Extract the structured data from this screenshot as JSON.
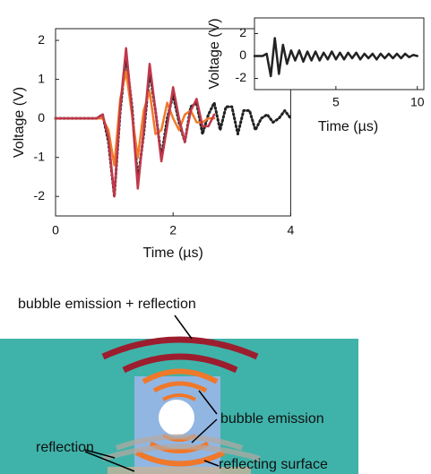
{
  "chart_data": [
    {
      "type": "line",
      "xlabel": "Time (µs)",
      "ylabel": "Voltage (V)",
      "x": [
        0,
        0.5,
        0.7,
        0.8,
        0.9,
        1.0,
        1.1,
        1.2,
        1.3,
        1.4,
        1.5,
        1.6,
        1.7,
        1.8,
        1.9,
        2.0,
        2.1,
        2.2,
        2.3,
        2.4,
        2.5,
        2.6,
        2.7,
        2.8,
        2.9,
        3.0,
        3.1,
        3.2,
        3.3,
        3.4,
        3.5,
        3.6,
        3.7,
        3.8,
        3.9,
        4.0
      ],
      "series": [
        {
          "color": "#c0384a",
          "style": "solid",
          "values": [
            0,
            0,
            0,
            0.1,
            -0.5,
            -2.0,
            0.3,
            1.8,
            0.2,
            -1.8,
            -0.3,
            1.4,
            0.2,
            -1.1,
            -0.2,
            0.8,
            0,
            -0.6,
            0.2,
            0.5,
            -0.2,
            -0.2,
            0.1,
            null,
            null,
            null,
            null,
            null,
            null,
            null,
            null,
            null,
            null,
            null,
            null,
            null
          ]
        },
        {
          "color": "#f07a2a",
          "style": "solid",
          "values": [
            0,
            0,
            0,
            0,
            -0.3,
            -1.2,
            0.5,
            1.2,
            0.1,
            -1.0,
            0.2,
            0.7,
            -0.4,
            -0.3,
            0.4,
            0,
            -0.3,
            0.1,
            0.2,
            -0.1,
            -0.1,
            0,
            0,
            null,
            null,
            null,
            null,
            null,
            null,
            null,
            null,
            null,
            null,
            null,
            null,
            null
          ]
        },
        {
          "color": "#222222",
          "style": "dotted",
          "values": [
            0,
            0,
            0,
            0.1,
            -0.6,
            -2.0,
            0.2,
            1.6,
            0.3,
            -1.6,
            -0.4,
            1.2,
            0.2,
            -1.0,
            0,
            0.6,
            -0.1,
            -0.6,
            0.3,
            0.4,
            -0.4,
            0.1,
            0.4,
            -0.3,
            0.3,
            0.3,
            -0.4,
            0.2,
            0.2,
            -0.3,
            0,
            0.1,
            -0.1,
            0,
            0.2,
            0
          ]
        }
      ],
      "xlim": [
        0,
        4
      ],
      "ylim": [
        -2.5,
        2.3
      ],
      "xticks": [
        0,
        2,
        4
      ],
      "yticks": [
        -2,
        -1,
        0,
        1,
        2
      ]
    },
    {
      "type": "line",
      "xlabel": "Time (µs)",
      "ylabel": "Voltage (V)",
      "x": [
        0,
        0.25,
        0.5,
        0.75,
        1,
        1.25,
        1.5,
        1.75,
        2,
        2.25,
        2.5,
        2.75,
        3,
        3.25,
        3.5,
        3.75,
        4,
        4.25,
        4.5,
        4.75,
        5,
        5.25,
        5.5,
        5.75,
        6,
        6.25,
        6.5,
        6.75,
        7,
        7.25,
        7.5,
        7.75,
        8,
        8.25,
        8.5,
        8.75,
        9,
        9.25,
        9.5,
        9.75,
        10
      ],
      "series": [
        {
          "color": "#222222",
          "style": "solid",
          "values": [
            0,
            0,
            0,
            0.2,
            -1.8,
            1.6,
            -1.6,
            1.0,
            -0.7,
            0.5,
            -0.4,
            0.5,
            -0.5,
            0.4,
            -0.4,
            0.4,
            -0.4,
            0.3,
            -0.3,
            0.4,
            -0.3,
            0.3,
            -0.3,
            0.3,
            -0.2,
            0.3,
            -0.3,
            0.2,
            -0.2,
            0.2,
            -0.3,
            0.2,
            -0.2,
            0.2,
            -0.2,
            0.2,
            -0.2,
            0.2,
            -0.1,
            0.1,
            0
          ]
        }
      ],
      "xlim": [
        0,
        10.4
      ],
      "ylim": [
        -3,
        3.4
      ],
      "xticks": [
        5,
        10
      ],
      "yticks": [
        -2,
        0,
        2
      ]
    }
  ],
  "diagram": {
    "labels": [
      "bubble emission + reflection",
      "bubble emission",
      "reflection",
      "reflecting surface"
    ]
  }
}
